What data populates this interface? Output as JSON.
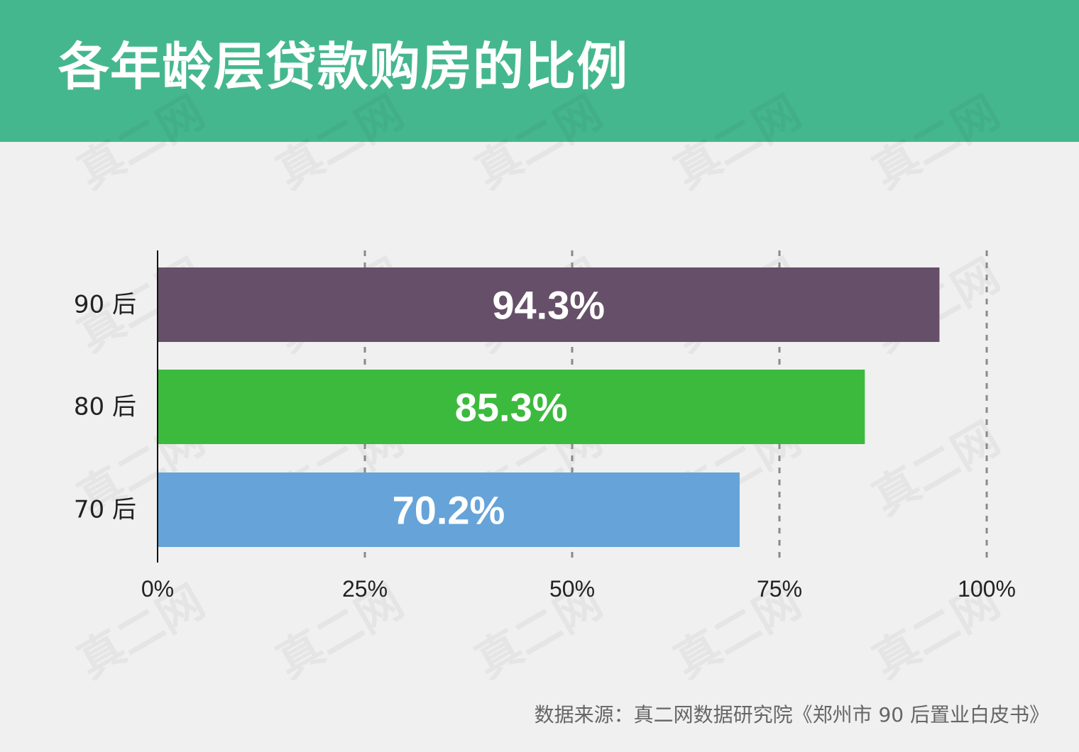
{
  "header": {
    "title": "各年龄层贷款购房的比例"
  },
  "colors": {
    "header_bg": "#45b78f",
    "bar_90": "#664f69",
    "bar_80": "#3cba3e",
    "bar_70": "#65a3d9"
  },
  "chart_data": {
    "type": "bar",
    "orientation": "horizontal",
    "title": "各年龄层贷款购房的比例",
    "categories": [
      "90 后",
      "80 后",
      "70 后"
    ],
    "values": [
      94.3,
      85.3,
      70.2
    ],
    "value_labels": [
      "94.3%",
      "85.3%",
      "70.2%"
    ],
    "bar_colors": [
      "#664f69",
      "#3cba3e",
      "#65a3d9"
    ],
    "xlim": [
      0,
      100
    ],
    "xticks": [
      0,
      25,
      50,
      75,
      100
    ],
    "xtick_labels": [
      "0%",
      "25%",
      "50%",
      "75%",
      "100%"
    ],
    "grid": "vertical dashed",
    "xlabel": "",
    "ylabel": ""
  },
  "watermark": "真二网",
  "footer": {
    "source": "数据来源：真二网数据研究院《郑州市 90 后置业白皮书》"
  }
}
